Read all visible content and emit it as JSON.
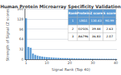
{
  "chart_data": {
    "type": "bar",
    "title": "Human Protein Microarray Specificity Validation",
    "xlabel": "Signal Rank (Top 40)",
    "ylabel": "Strength of Signal (Z scores)",
    "x": [
      1,
      2,
      3,
      4,
      5,
      6,
      7,
      8,
      9,
      10,
      11,
      12,
      13,
      14,
      15,
      16,
      17,
      18,
      19,
      20,
      21,
      22,
      23,
      24,
      25,
      26,
      27,
      28,
      29,
      30,
      31,
      32,
      33,
      34,
      35,
      36,
      37,
      38,
      39,
      40
    ],
    "values": [
      130.43,
      39.44,
      36.83,
      18.5,
      14.2,
      11.8,
      10.1,
      8.9,
      8.0,
      7.2,
      6.5,
      6.0,
      5.6,
      5.2,
      4.9,
      4.6,
      4.3,
      4.1,
      3.9,
      3.7,
      3.5,
      3.3,
      3.2,
      3.0,
      2.9,
      2.8,
      2.7,
      2.6,
      2.5,
      2.4,
      2.3,
      2.2,
      2.2,
      2.1,
      2.0,
      2.0,
      1.9,
      1.9,
      1.8,
      1.8
    ],
    "color": "#5b9bd5",
    "xlim": [
      0.5,
      40.5
    ],
    "xticks": [
      1,
      10,
      20,
      30,
      40
    ],
    "ylim": [
      0,
      160
    ],
    "yticks": [
      0,
      32,
      64,
      96,
      128,
      160
    ],
    "grid": true,
    "table_headers": [
      "Rank",
      "Protein",
      "Z score",
      "S score"
    ],
    "table_rows": [
      [
        "1",
        "LRG1",
        "130.43",
        "90.99"
      ],
      [
        "2",
        "O2SOL",
        "39.44",
        "2.63"
      ],
      [
        "3",
        "A6796",
        "36.83",
        "2.07"
      ]
    ]
  }
}
